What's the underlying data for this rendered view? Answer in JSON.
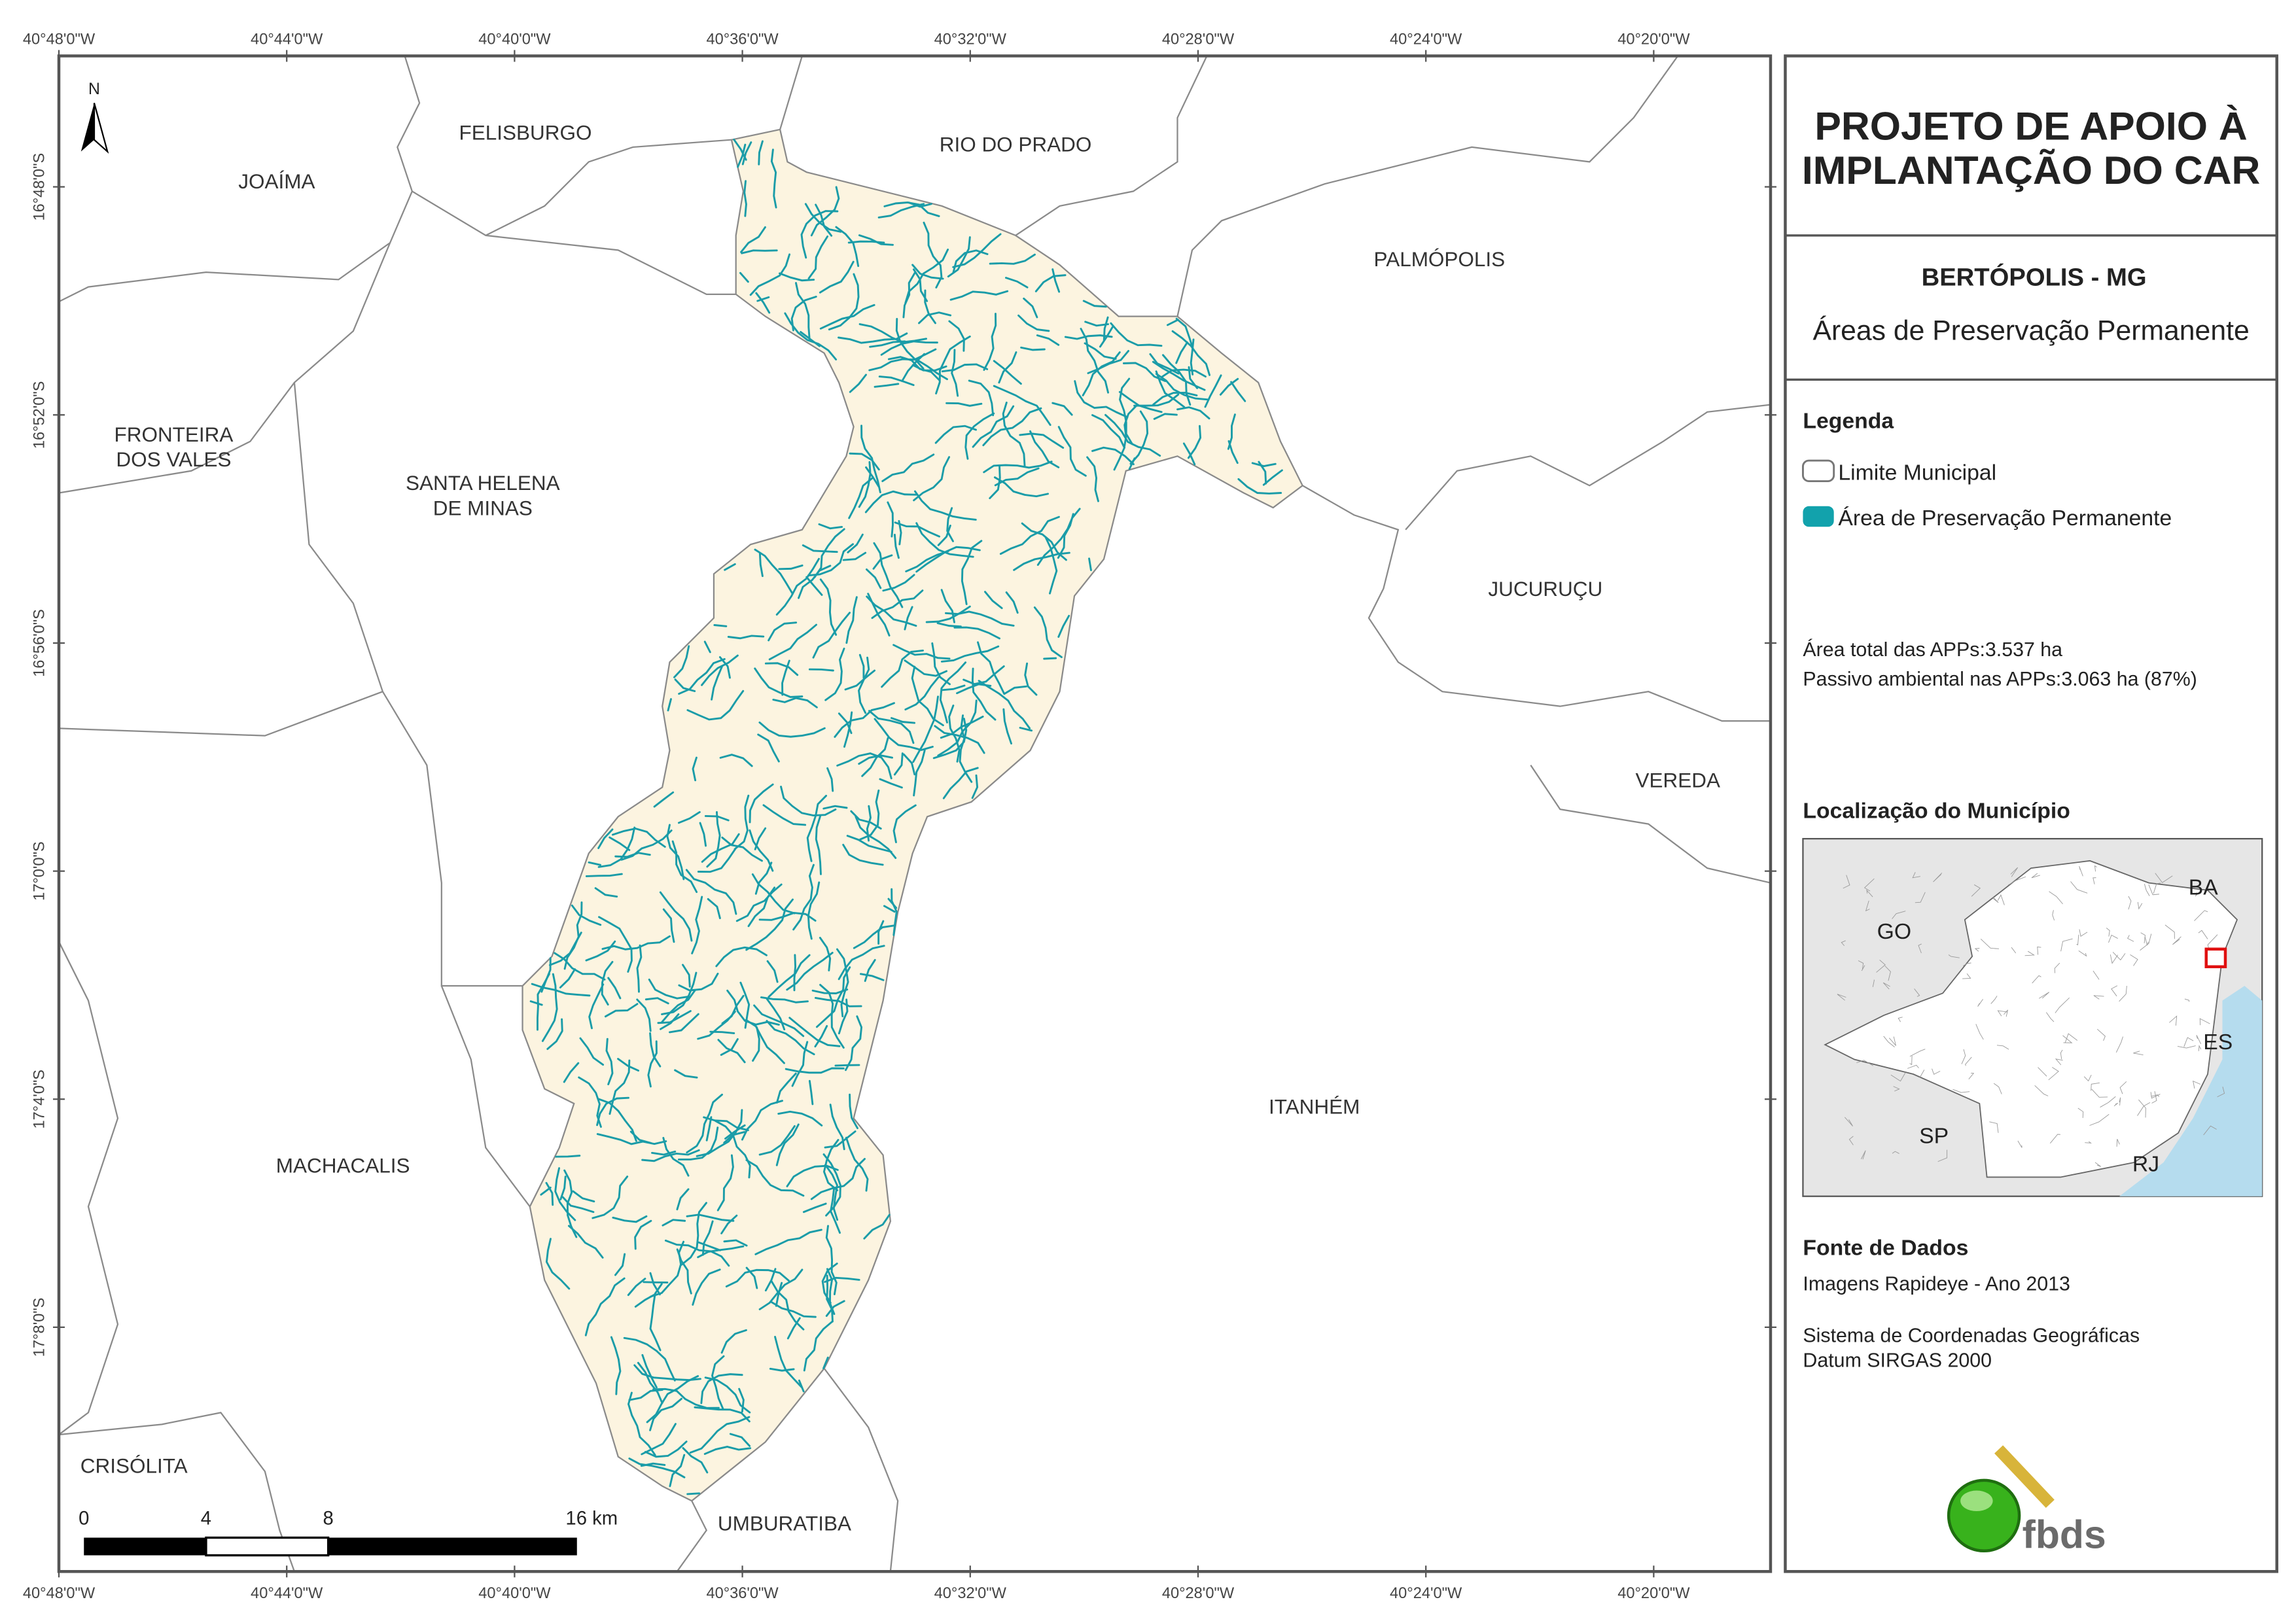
{
  "map": {
    "north_label": "N",
    "lon_labels": [
      "40°48'0\"W",
      "40°44'0\"W",
      "40°40'0\"W",
      "40°36'0\"W",
      "40°32'0\"W",
      "40°28'0\"W",
      "40°24'0\"W",
      "40°20'0\"W"
    ],
    "lat_labels": [
      "16°48'0\"S",
      "16°52'0\"S",
      "16°56'0\"S",
      "17°0'0\"S",
      "17°4'0\"S",
      "17°8'0\"S"
    ],
    "places": [
      [
        "JOAÍMA"
      ],
      [
        "FELISBURGO"
      ],
      [
        "RIO DO PRADO"
      ],
      [
        "PALMÓPOLIS"
      ],
      [
        "FRONTEIRA",
        "DOS VALES"
      ],
      [
        "SANTA HELENA",
        "DE MINAS"
      ],
      [
        "JUCURUÇU"
      ],
      [
        "VEREDA"
      ],
      [
        "ITANHÉM"
      ],
      [
        "MACHACALIS"
      ],
      [
        "CRISÓLITA"
      ],
      [
        "UMBURATIBA"
      ]
    ],
    "scale_bar": {
      "labels": [
        "0",
        "4",
        "8",
        "16 km"
      ]
    }
  },
  "panel": {
    "title": [
      "PROJETO DE APOIO À",
      "IMPLANTAÇÃO DO CAR"
    ],
    "subtitle": "BERTÓPOLIS - MG",
    "theme": "Áreas de Preservação Permanente",
    "legend": {
      "title": "Legenda",
      "items": [
        "Limite Municipal",
        "Área de Preservação Permanente"
      ]
    },
    "stats": [
      "Área total das APPs:3.537 ha",
      "Passivo ambiental nas APPs:3.063 ha (87%)"
    ],
    "location": {
      "title": "Localização do Município",
      "states": [
        "BA",
        "GO",
        "ES",
        "SP",
        "RJ"
      ]
    },
    "source": {
      "title": "Fonte de Dados",
      "lines": [
        "Imagens Rapideye - Ano 2013",
        "Sistema de Coordenadas Geográficas",
        "Datum SIRGAS 2000"
      ]
    },
    "logo": "fbds"
  }
}
